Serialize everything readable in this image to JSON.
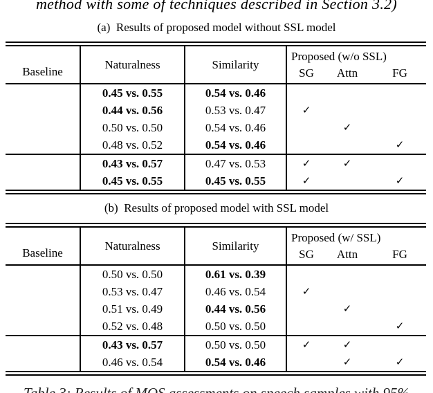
{
  "colors": {
    "text": "#000000",
    "background": "#ffffff"
  },
  "page": {
    "top_text": "method with some of techniques described in Section 3.2)",
    "bottom_caption": "Table 3: Results of MOS assessments on speech samples with 95%"
  },
  "table_a": {
    "caption": "(a)  Results of proposed model without SSL model",
    "headers": {
      "baseline": "Baseline",
      "naturalness": "Naturalness",
      "similarity": "Similarity",
      "proposed": "Proposed (w/o SSL)",
      "sub": [
        "SG",
        "Attn",
        "FG"
      ]
    },
    "groups": [
      {
        "rows": [
          {
            "baseline": "",
            "nat": "0.45 vs. 0.55",
            "nat_b": true,
            "sim": "0.54 vs. 0.46",
            "sim_b": true,
            "checks": [
              "",
              "",
              ""
            ]
          },
          {
            "baseline": "",
            "nat": "0.44 vs. 0.56",
            "nat_b": true,
            "sim": "0.53 vs. 0.47",
            "sim_b": false,
            "checks": [
              "✓",
              "",
              ""
            ]
          },
          {
            "baseline": "",
            "nat": "0.50 vs. 0.50",
            "nat_b": false,
            "sim": "0.54 vs. 0.46",
            "sim_b": false,
            "checks": [
              "",
              "✓",
              ""
            ]
          },
          {
            "baseline": "",
            "nat": "0.48 vs. 0.52",
            "nat_b": false,
            "sim": "0.54 vs. 0.46",
            "sim_b": true,
            "checks": [
              "",
              "",
              "✓"
            ]
          }
        ]
      },
      {
        "rows": [
          {
            "baseline": "",
            "nat": "0.43 vs. 0.57",
            "nat_b": true,
            "sim": "0.47 vs. 0.53",
            "sim_b": false,
            "checks": [
              "✓",
              "✓",
              ""
            ]
          },
          {
            "baseline": "",
            "nat": "0.45 vs. 0.55",
            "nat_b": true,
            "sim": "0.45 vs. 0.55",
            "sim_b": true,
            "checks": [
              "✓",
              "",
              "✓"
            ]
          }
        ]
      }
    ]
  },
  "table_b": {
    "caption": "(b)  Results of proposed model with SSL model",
    "headers": {
      "baseline": "Baseline",
      "naturalness": "Naturalness",
      "similarity": "Similarity",
      "proposed": "Proposed (w/ SSL)",
      "sub": [
        "SG",
        "Attn",
        "FG"
      ]
    },
    "groups": [
      {
        "rows": [
          {
            "baseline": "",
            "nat": "0.50 vs. 0.50",
            "nat_b": false,
            "sim": "0.61 vs. 0.39",
            "sim_b": true,
            "checks": [
              "",
              "",
              ""
            ]
          },
          {
            "baseline": "",
            "nat": "0.53 vs. 0.47",
            "nat_b": false,
            "sim": "0.46 vs. 0.54",
            "sim_b": false,
            "checks": [
              "✓",
              "",
              ""
            ]
          },
          {
            "baseline": "",
            "nat": "0.51 vs. 0.49",
            "nat_b": false,
            "sim": "0.44 vs. 0.56",
            "sim_b": true,
            "checks": [
              "",
              "✓",
              ""
            ]
          },
          {
            "baseline": "",
            "nat": "0.52 vs. 0.48",
            "nat_b": false,
            "sim": "0.50 vs. 0.50",
            "sim_b": false,
            "checks": [
              "",
              "",
              "✓"
            ]
          }
        ]
      },
      {
        "rows": [
          {
            "baseline": "",
            "nat": "0.43 vs. 0.57",
            "nat_b": true,
            "sim": "0.50 vs. 0.50",
            "sim_b": false,
            "checks": [
              "✓",
              "✓",
              ""
            ]
          },
          {
            "baseline": "",
            "nat": "0.46 vs. 0.54",
            "nat_b": false,
            "sim": "0.54 vs. 0.46",
            "sim_b": true,
            "checks": [
              "",
              "✓",
              "✓"
            ]
          }
        ]
      }
    ]
  }
}
